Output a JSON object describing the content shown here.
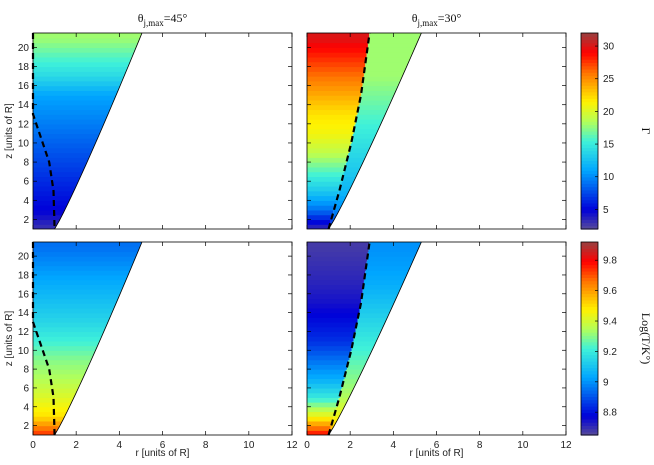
{
  "chart_data": [
    {
      "type": "heatmap",
      "panel": "top-left",
      "title": "θj,max=45°",
      "title_main": "θ",
      "title_sub": "j,max",
      "title_rest": "=45°",
      "xlabel": "",
      "ylabel": "z [units of R]",
      "xlim": [
        0,
        12
      ],
      "ylim": [
        1,
        21.5
      ],
      "xticks": [
        "",
        "",
        "",
        "",
        "",
        "",
        ""
      ],
      "yticks": [
        "2",
        "4",
        "6",
        "8",
        "10",
        "12",
        "14",
        "16",
        "18",
        "20"
      ],
      "quantity": "Gamma",
      "colorbar_range": [
        2,
        32
      ],
      "boundary_outer_r": [
        [
          1.0,
          1.0
        ],
        [
          5.05,
          21.5
        ]
      ],
      "boundary_dashed": [
        [
          0,
          21.5
        ],
        [
          0.0,
          13.0
        ],
        [
          0.3,
          11.0
        ],
        [
          0.75,
          8.0
        ],
        [
          0.95,
          5.0
        ],
        [
          1.0,
          1.0
        ]
      ],
      "gamma_profile_z": [
        1,
        3,
        5,
        7,
        9,
        11,
        13,
        15,
        17,
        19,
        21
      ],
      "gamma_profile_value": [
        3,
        5,
        6,
        7,
        8,
        9,
        10,
        11,
        14,
        16,
        18
      ]
    },
    {
      "type": "heatmap",
      "panel": "top-right",
      "title": "θj,max=30°",
      "title_main": "θ",
      "title_sub": "j,max",
      "title_rest": "=30°",
      "xlabel": "",
      "ylabel": "",
      "xlim": [
        0,
        12
      ],
      "ylim": [
        1,
        21.5
      ],
      "xticks": [
        "",
        "",
        "",
        "",
        "",
        "",
        ""
      ],
      "yticks": [
        "",
        "",
        "",
        "",
        "",
        "",
        "",
        "",
        "",
        ""
      ],
      "quantity": "Gamma",
      "colorbar_range": [
        2,
        32
      ],
      "boundary_outer_r": [
        [
          1.0,
          1.0
        ],
        [
          5.3,
          21.5
        ]
      ],
      "boundary_dashed": [
        [
          1.0,
          1.0
        ],
        [
          1.5,
          5.0
        ],
        [
          2.05,
          10.0
        ],
        [
          2.5,
          15.0
        ],
        [
          2.9,
          21.5
        ]
      ],
      "gamma_profile_z": [
        1,
        3,
        5,
        7,
        9,
        11,
        13,
        15,
        17,
        19,
        21
      ],
      "gamma_inner_value": [
        3,
        9,
        13,
        16,
        19,
        21,
        22,
        24,
        26,
        28,
        30
      ],
      "gamma_outer_value": [
        6,
        10,
        12,
        13,
        14,
        15,
        16,
        17,
        18,
        18,
        18
      ]
    },
    {
      "type": "heatmap",
      "panel": "bottom-left",
      "title": "",
      "xlabel": "r [units of R]",
      "ylabel": "z [units of R]",
      "xlim": [
        0,
        12
      ],
      "ylim": [
        1,
        21.5
      ],
      "xticks": [
        "0",
        "2",
        "4",
        "6",
        "8",
        "10",
        "12"
      ],
      "yticks": [
        "2",
        "4",
        "6",
        "8",
        "10",
        "12",
        "14",
        "16",
        "18",
        "20"
      ],
      "quantity": "Log(T/K°)",
      "colorbar_range": [
        8.65,
        9.92
      ],
      "boundary_outer_r": [
        [
          1.0,
          1.0
        ],
        [
          5.05,
          21.5
        ]
      ],
      "boundary_dashed": [
        [
          0,
          21.5
        ],
        [
          0.0,
          13.0
        ],
        [
          0.3,
          11.0
        ],
        [
          0.75,
          8.0
        ],
        [
          0.95,
          5.0
        ],
        [
          1.0,
          1.0
        ]
      ],
      "logT_profile_z": [
        1,
        3,
        5,
        7,
        9,
        11,
        13,
        15,
        17,
        19,
        21
      ],
      "logT_profile_value": [
        9.75,
        9.5,
        9.42,
        9.35,
        9.3,
        9.22,
        9.15,
        9.1,
        9.05,
        9.0,
        8.95
      ]
    },
    {
      "type": "heatmap",
      "panel": "bottom-right",
      "title": "",
      "xlabel": "r [units of R]",
      "ylabel": "",
      "xlim": [
        0,
        12
      ],
      "ylim": [
        1,
        21.5
      ],
      "xticks": [
        "0",
        "2",
        "4",
        "6",
        "8",
        "10",
        "12"
      ],
      "yticks": [
        "",
        "",
        "",
        "",
        "",
        "",
        "",
        "",
        "",
        ""
      ],
      "quantity": "Log(T/K°)",
      "colorbar_range": [
        8.65,
        9.92
      ],
      "boundary_outer_r": [
        [
          1.0,
          1.0
        ],
        [
          5.3,
          21.5
        ]
      ],
      "boundary_dashed": [
        [
          1.0,
          1.0
        ],
        [
          1.5,
          5.0
        ],
        [
          2.05,
          10.0
        ],
        [
          2.5,
          15.0
        ],
        [
          2.9,
          21.5
        ]
      ],
      "logT_profile_z": [
        1,
        3,
        5,
        7,
        9,
        11,
        13,
        15,
        17,
        19,
        21
      ],
      "logT_inner_value": [
        9.8,
        9.45,
        9.2,
        9.05,
        8.95,
        8.85,
        8.8,
        8.75,
        8.72,
        8.7,
        8.68
      ],
      "logT_outer_value": [
        9.6,
        9.45,
        9.35,
        9.3,
        9.25,
        9.2,
        9.15,
        9.1,
        9.05,
        9.02,
        9.0
      ]
    }
  ],
  "colorbars": [
    {
      "label": "Γ",
      "min": 2,
      "max": 32,
      "ticks": [
        "5",
        "10",
        "15",
        "20",
        "25",
        "30"
      ],
      "tick_values": [
        5,
        10,
        15,
        20,
        25,
        30
      ]
    },
    {
      "label": "Log(T/K°)",
      "min": 8.65,
      "max": 9.92,
      "ticks": [
        "8.8",
        "9",
        "9.2",
        "9.4",
        "9.6",
        "9.8"
      ],
      "tick_values": [
        8.8,
        9.0,
        9.2,
        9.4,
        9.6,
        9.8
      ]
    }
  ]
}
